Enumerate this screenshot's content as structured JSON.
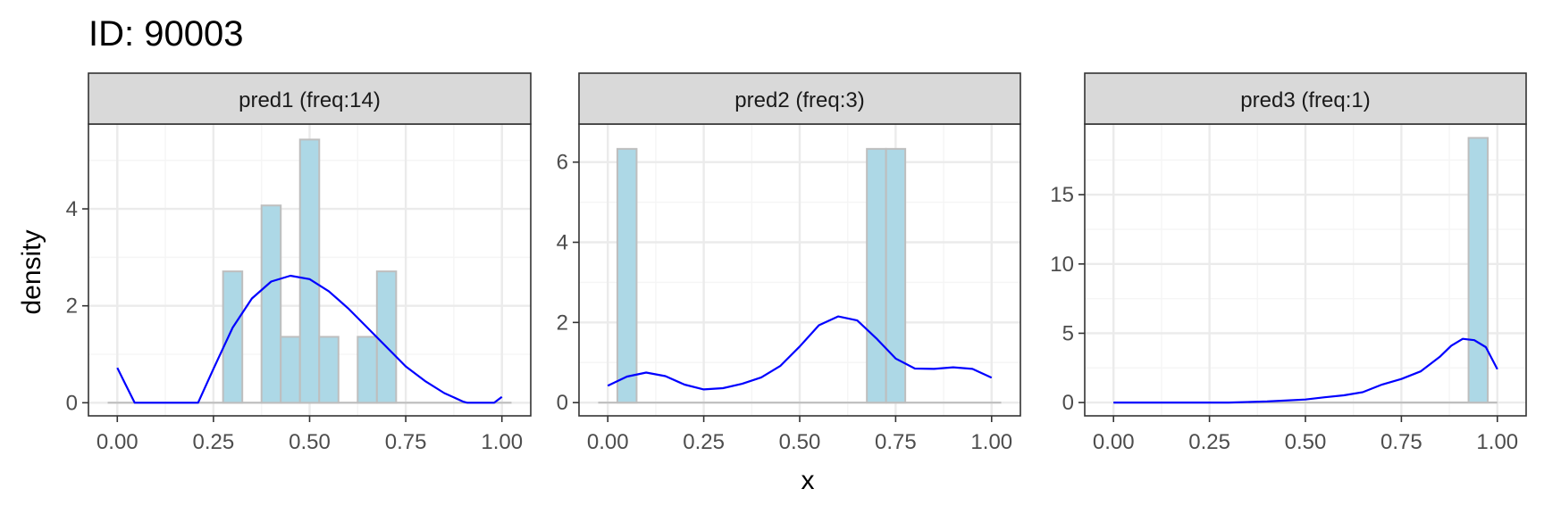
{
  "title": "ID: 90003",
  "colors": {
    "bar_fill": "#add8e6",
    "bar_stroke": "#bebebe",
    "density_line": "#0000ff",
    "baseline": "#bebebe",
    "grid_major": "#ebebeb",
    "grid_minor": "#f5f5f5",
    "strip_fill": "#d9d9d9",
    "panel_border": "#333333"
  },
  "chart_data": {
    "type": "histogram-density-facets",
    "xlabel": "x",
    "ylabel": "density",
    "grid": true,
    "bin_width": 0.05,
    "panels": [
      {
        "strip": "pred1 (freq:14)",
        "xlim": [
          -0.075,
          1.075
        ],
        "ylim": [
          -0.27,
          5.75
        ],
        "x_ticks": [
          {
            "value": 0,
            "label": "0.00"
          },
          {
            "value": 0.25,
            "label": "0.25"
          },
          {
            "value": 0.5,
            "label": "0.50"
          },
          {
            "value": 0.75,
            "label": "0.75"
          },
          {
            "value": 1,
            "label": "1.00"
          }
        ],
        "y_ticks": [
          {
            "value": 0,
            "label": "0"
          },
          {
            "value": 2,
            "label": "2"
          },
          {
            "value": 4,
            "label": "4"
          }
        ],
        "baseline": [
          -0.025,
          1.025
        ],
        "bars": [
          {
            "x0": 0.275,
            "x1": 0.325,
            "y": 2.71
          },
          {
            "x0": 0.375,
            "x1": 0.425,
            "y": 4.07
          },
          {
            "x0": 0.425,
            "x1": 0.475,
            "y": 1.36
          },
          {
            "x0": 0.475,
            "x1": 0.525,
            "y": 5.43
          },
          {
            "x0": 0.525,
            "x1": 0.575,
            "y": 1.36
          },
          {
            "x0": 0.625,
            "x1": 0.675,
            "y": 1.36
          },
          {
            "x0": 0.675,
            "x1": 0.725,
            "y": 2.71
          }
        ],
        "density": [
          [
            0.0,
            0.72
          ],
          [
            0.02,
            0.4
          ],
          [
            0.045,
            0.0
          ],
          [
            0.21,
            0.0
          ],
          [
            0.25,
            0.7
          ],
          [
            0.3,
            1.55
          ],
          [
            0.35,
            2.15
          ],
          [
            0.4,
            2.5
          ],
          [
            0.45,
            2.62
          ],
          [
            0.5,
            2.55
          ],
          [
            0.55,
            2.3
          ],
          [
            0.6,
            1.95
          ],
          [
            0.65,
            1.55
          ],
          [
            0.7,
            1.15
          ],
          [
            0.75,
            0.75
          ],
          [
            0.8,
            0.45
          ],
          [
            0.85,
            0.2
          ],
          [
            0.9,
            0.02
          ],
          [
            0.91,
            0.0
          ],
          [
            0.98,
            0.0
          ],
          [
            1.0,
            0.12
          ]
        ]
      },
      {
        "strip": "pred2 (freq:3)",
        "xlim": [
          -0.075,
          1.075
        ],
        "ylim": [
          -0.33,
          6.95
        ],
        "x_ticks": [
          {
            "value": 0,
            "label": "0.00"
          },
          {
            "value": 0.25,
            "label": "0.25"
          },
          {
            "value": 0.5,
            "label": "0.50"
          },
          {
            "value": 0.75,
            "label": "0.75"
          },
          {
            "value": 1,
            "label": "1.00"
          }
        ],
        "y_ticks": [
          {
            "value": 0,
            "label": "0"
          },
          {
            "value": 2,
            "label": "2"
          },
          {
            "value": 4,
            "label": "4"
          },
          {
            "value": 6,
            "label": "6"
          }
        ],
        "baseline": [
          -0.025,
          1.025
        ],
        "bars": [
          {
            "x0": 0.025,
            "x1": 0.075,
            "y": 6.33
          },
          {
            "x0": 0.675,
            "x1": 0.725,
            "y": 6.33
          },
          {
            "x0": 0.725,
            "x1": 0.775,
            "y": 6.33
          }
        ],
        "density": [
          [
            0.0,
            0.42
          ],
          [
            0.05,
            0.65
          ],
          [
            0.1,
            0.75
          ],
          [
            0.15,
            0.66
          ],
          [
            0.2,
            0.45
          ],
          [
            0.25,
            0.33
          ],
          [
            0.3,
            0.36
          ],
          [
            0.35,
            0.47
          ],
          [
            0.4,
            0.63
          ],
          [
            0.45,
            0.92
          ],
          [
            0.5,
            1.4
          ],
          [
            0.55,
            1.93
          ],
          [
            0.6,
            2.15
          ],
          [
            0.65,
            2.05
          ],
          [
            0.7,
            1.6
          ],
          [
            0.75,
            1.1
          ],
          [
            0.8,
            0.85
          ],
          [
            0.85,
            0.84
          ],
          [
            0.9,
            0.88
          ],
          [
            0.95,
            0.84
          ],
          [
            1.0,
            0.62
          ]
        ]
      },
      {
        "strip": "pred3 (freq:1)",
        "xlim": [
          -0.075,
          1.075
        ],
        "ylim": [
          -0.96,
          20.1
        ],
        "x_ticks": [
          {
            "value": 0,
            "label": "0.00"
          },
          {
            "value": 0.25,
            "label": "0.25"
          },
          {
            "value": 0.5,
            "label": "0.50"
          },
          {
            "value": 0.75,
            "label": "0.75"
          },
          {
            "value": 1,
            "label": "1.00"
          }
        ],
        "y_ticks": [
          {
            "value": 0,
            "label": "0"
          },
          {
            "value": 5,
            "label": "5"
          },
          {
            "value": 10,
            "label": "10"
          },
          {
            "value": 15,
            "label": "15"
          }
        ],
        "baseline": [
          0.0,
          1.0
        ],
        "bars": [
          {
            "x0": 0.925,
            "x1": 0.975,
            "y": 19.1
          }
        ],
        "density": [
          [
            0.0,
            0.0
          ],
          [
            0.3,
            0.0
          ],
          [
            0.4,
            0.08
          ],
          [
            0.5,
            0.22
          ],
          [
            0.55,
            0.38
          ],
          [
            0.6,
            0.52
          ],
          [
            0.65,
            0.75
          ],
          [
            0.7,
            1.3
          ],
          [
            0.75,
            1.7
          ],
          [
            0.8,
            2.25
          ],
          [
            0.85,
            3.3
          ],
          [
            0.88,
            4.1
          ],
          [
            0.91,
            4.6
          ],
          [
            0.94,
            4.5
          ],
          [
            0.97,
            4.0
          ],
          [
            1.0,
            2.4
          ]
        ]
      }
    ]
  }
}
